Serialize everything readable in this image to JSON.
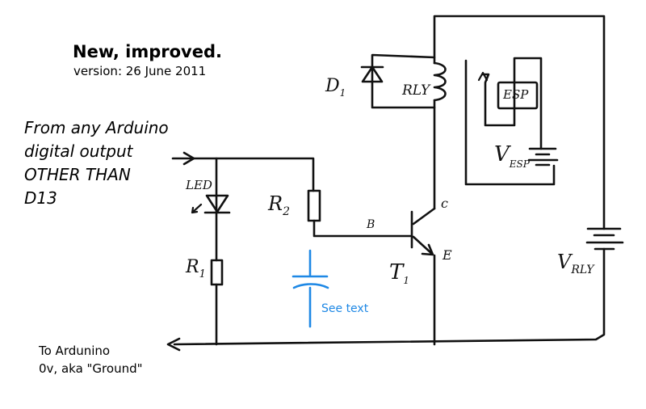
{
  "heading": {
    "title": "New, improved.",
    "version": "version: 26 June 2011"
  },
  "input_note": {
    "line1": "From any Arduino",
    "line2": "digital output",
    "line3": "OTHER THAN",
    "line4": "D13"
  },
  "ground_note": {
    "line1": "To Ardunino",
    "line2": "0v, aka \"Ground\""
  },
  "capacitor_note": "See text",
  "labels": {
    "led": "LED",
    "r1": "R",
    "r1_sub": "1",
    "r2": "R",
    "r2_sub": "2",
    "d1": "D",
    "d1_sub": "1",
    "rly": "RLY",
    "esp": "ESP",
    "v_esp": "V",
    "v_esp_sub": "ESP",
    "v_rly": "V",
    "v_rly_sub": "RLY",
    "t1": "T",
    "t1_sub": "1",
    "base": "B",
    "collector": "c",
    "emitter": "E"
  },
  "colors": {
    "ink": "#111111",
    "annotation": "#1e88e5"
  }
}
